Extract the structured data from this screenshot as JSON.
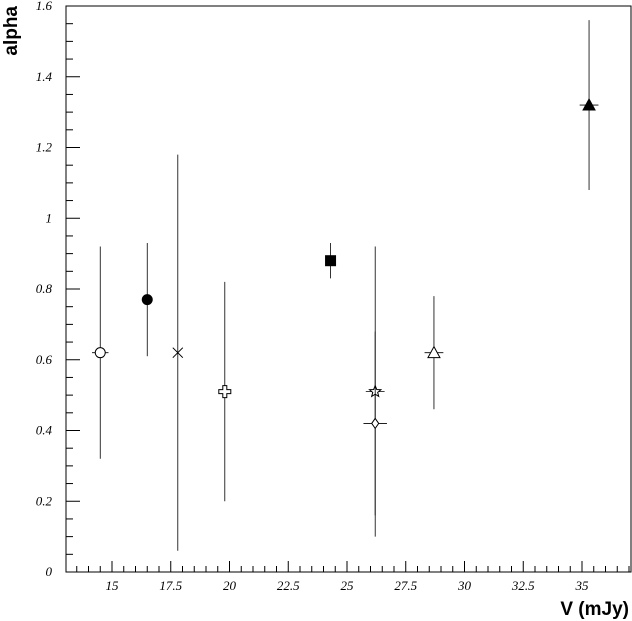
{
  "chart_data": {
    "type": "scatter",
    "title": "",
    "xlabel": "V (mJy)",
    "ylabel": "alpha",
    "xlim": [
      13,
      37
    ],
    "ylim": [
      0,
      1.6
    ],
    "xticks": [
      "15",
      "17.5",
      "20",
      "22.5",
      "25",
      "27.5",
      "30",
      "32.5",
      "35"
    ],
    "yticks": [
      "0",
      "0.2",
      "0.4",
      "0.6",
      "0.8",
      "1",
      "1.2",
      "1.4",
      "1.6"
    ],
    "grid": false,
    "legend": "none",
    "points": [
      {
        "x": 14.5,
        "y": 0.62,
        "yerr": [
          0.3,
          0.3
        ],
        "xerr": 0.35,
        "marker": "open-circle"
      },
      {
        "x": 16.5,
        "y": 0.77,
        "yerr": [
          0.16,
          0.16
        ],
        "xerr": 0,
        "marker": "filled-circle"
      },
      {
        "x": 17.8,
        "y": 0.62,
        "yerr": [
          0.56,
          0.56
        ],
        "xerr": 0,
        "marker": "cross"
      },
      {
        "x": 19.8,
        "y": 0.51,
        "yerr": [
          0.31,
          0.31
        ],
        "xerr": 0,
        "marker": "open-cross"
      },
      {
        "x": 24.3,
        "y": 0.88,
        "yerr": [
          0.05,
          0.05
        ],
        "xerr": 0,
        "marker": "filled-square"
      },
      {
        "x": 26.2,
        "y": 0.51,
        "yerr": [
          0.41,
          0.41
        ],
        "xerr": 0.4,
        "marker": "open-star"
      },
      {
        "x": 26.2,
        "y": 0.42,
        "yerr": [
          0.26,
          0.26
        ],
        "xerr": 0.5,
        "marker": "open-diamond"
      },
      {
        "x": 28.7,
        "y": 0.62,
        "yerr": [
          0.16,
          0.16
        ],
        "xerr": 0.4,
        "marker": "open-triangle"
      },
      {
        "x": 35.3,
        "y": 1.32,
        "yerr": [
          0.24,
          0.24
        ],
        "xerr": 0.4,
        "marker": "filled-triangle"
      }
    ]
  }
}
